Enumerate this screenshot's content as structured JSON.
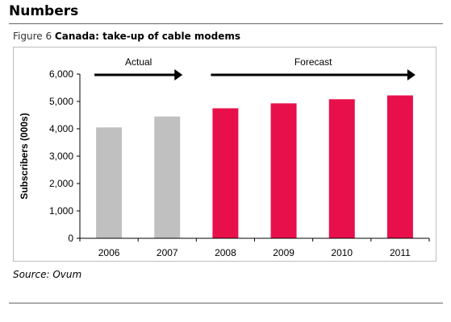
{
  "page": {
    "section_title": "Numbers",
    "figure_number": "Figure 6",
    "figure_title": "Canada: take-up of cable modems",
    "source": "Source: Ovum"
  },
  "chart_data": {
    "type": "bar",
    "categories": [
      "2006",
      "2007",
      "2008",
      "2009",
      "2010",
      "2011"
    ],
    "values": [
      4050,
      4450,
      4750,
      4930,
      5080,
      5220
    ],
    "ylabel": "Subscribers (000s)",
    "xlabel": "",
    "ylim": [
      0,
      6000
    ],
    "yticks": [
      0,
      1000,
      2000,
      3000,
      4000,
      5000,
      6000
    ],
    "ytick_labels": [
      "0",
      "1,000",
      "2,000",
      "3,000",
      "4,000",
      "5,000",
      "6,000"
    ],
    "grid": false,
    "bar_status": [
      "actual",
      "actual",
      "forecast",
      "forecast",
      "forecast",
      "forecast"
    ],
    "colors": {
      "actual": "#c0c0c0",
      "forecast": "#e8104a"
    },
    "annotations": [
      {
        "text": "Actual",
        "from_category": "2006",
        "to_category": "2007",
        "arrow": "right"
      },
      {
        "text": "Forecast",
        "from_category": "2008",
        "to_category": "2011",
        "arrow": "right"
      }
    ]
  }
}
